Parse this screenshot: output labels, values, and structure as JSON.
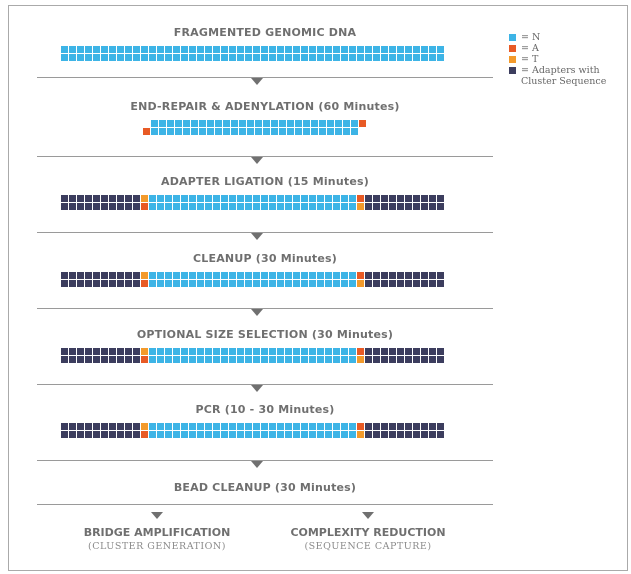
{
  "legend": [
    {
      "code": "N",
      "label": "= N",
      "color": "#3db4e6",
      "icon": "square-N"
    },
    {
      "code": "A",
      "label": "= A",
      "color": "#e85a25",
      "icon": "square-A"
    },
    {
      "code": "T",
      "label": "= T",
      "color": "#f39a2b",
      "icon": "square-T"
    },
    {
      "code": "D",
      "label": "= Adapters with Cluster Sequence",
      "color": "#3c3d5e",
      "icon": "square-adapter"
    }
  ],
  "steps": [
    {
      "title": "FRAGMENTED GENOMIC DNA",
      "strand": "fragment"
    },
    {
      "title": "END-REPAIR & ADENYLATION (60 Minutes)",
      "strand": "adenylated"
    },
    {
      "title": "ADAPTER LIGATION (15 Minutes)",
      "strand": "ligated"
    },
    {
      "title": "CLEANUP (30 Minutes)",
      "strand": "ligated"
    },
    {
      "title": "OPTIONAL SIZE SELECTION (30 Minutes)",
      "strand": "ligated"
    },
    {
      "title": "PCR (10 - 30 Minutes)",
      "strand": "ligated"
    },
    {
      "title": "BEAD CLEANUP (30 Minutes)",
      "strand": "none"
    }
  ],
  "branches": [
    {
      "title": "BRIDGE AMPLIFICATION",
      "subtitle": "(CLUSTER GENERATION)"
    },
    {
      "title": "COMPLEXITY REDUCTION",
      "subtitle": "(SEQUENCE CAPTURE)"
    }
  ]
}
